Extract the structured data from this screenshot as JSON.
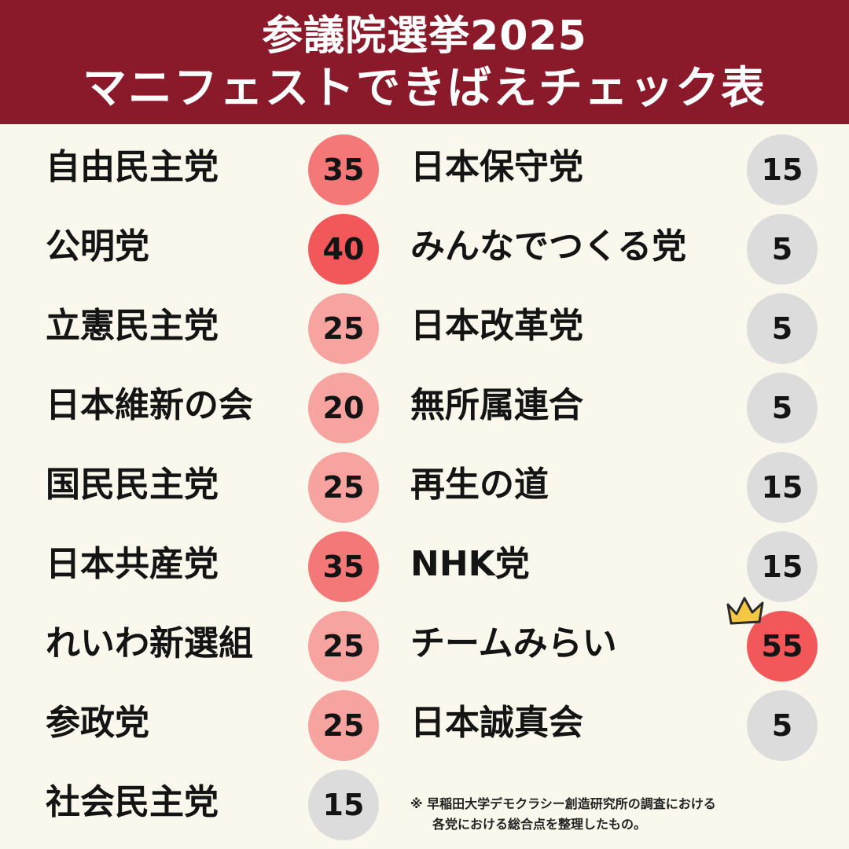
{
  "header": {
    "title_line1": "参議院選挙2025",
    "title_line2": "マニフェストできばえチェック表"
  },
  "colors": {
    "header_bg": "#8a1a29",
    "background": "#faf8ec",
    "score_high": "#f2575a",
    "score_mid_high": "#f47877",
    "score_mid": "#f7a3a0",
    "score_low": "#dcdcdc",
    "crown": "#f5c842"
  },
  "parties_left": [
    {
      "name": "自由民主党",
      "score": "35",
      "level": "mid_high"
    },
    {
      "name": "公明党",
      "score": "40",
      "level": "high"
    },
    {
      "name": "立憲民主党",
      "score": "25",
      "level": "mid"
    },
    {
      "name": "日本維新の会",
      "score": "20",
      "level": "mid"
    },
    {
      "name": "国民民主党",
      "score": "25",
      "level": "mid"
    },
    {
      "name": "日本共産党",
      "score": "35",
      "level": "mid_high"
    },
    {
      "name": "れいわ新選組",
      "score": "25",
      "level": "mid"
    },
    {
      "name": "参政党",
      "score": "25",
      "level": "mid"
    },
    {
      "name": "社会民主党",
      "score": "15",
      "level": "low"
    }
  ],
  "parties_right": [
    {
      "name": "日本保守党",
      "score": "15",
      "level": "low"
    },
    {
      "name": "みんなでつくる党",
      "score": "5",
      "level": "low"
    },
    {
      "name": "日本改革党",
      "score": "5",
      "level": "low"
    },
    {
      "name": "無所属連合",
      "score": "5",
      "level": "low"
    },
    {
      "name": "再生の道",
      "score": "15",
      "level": "low"
    },
    {
      "name": "NHK党",
      "score": "15",
      "level": "low"
    },
    {
      "name": "チームみらい",
      "score": "55",
      "level": "high",
      "crown": true
    },
    {
      "name": "日本誠真会",
      "score": "5",
      "level": "low"
    }
  ],
  "icons": {
    "crown": "crown-icon"
  },
  "note": {
    "line1": "※ 早稲田大学デモクラシー創造研究所の調査における",
    "line2": "各党における総合点を整理したもの。"
  }
}
